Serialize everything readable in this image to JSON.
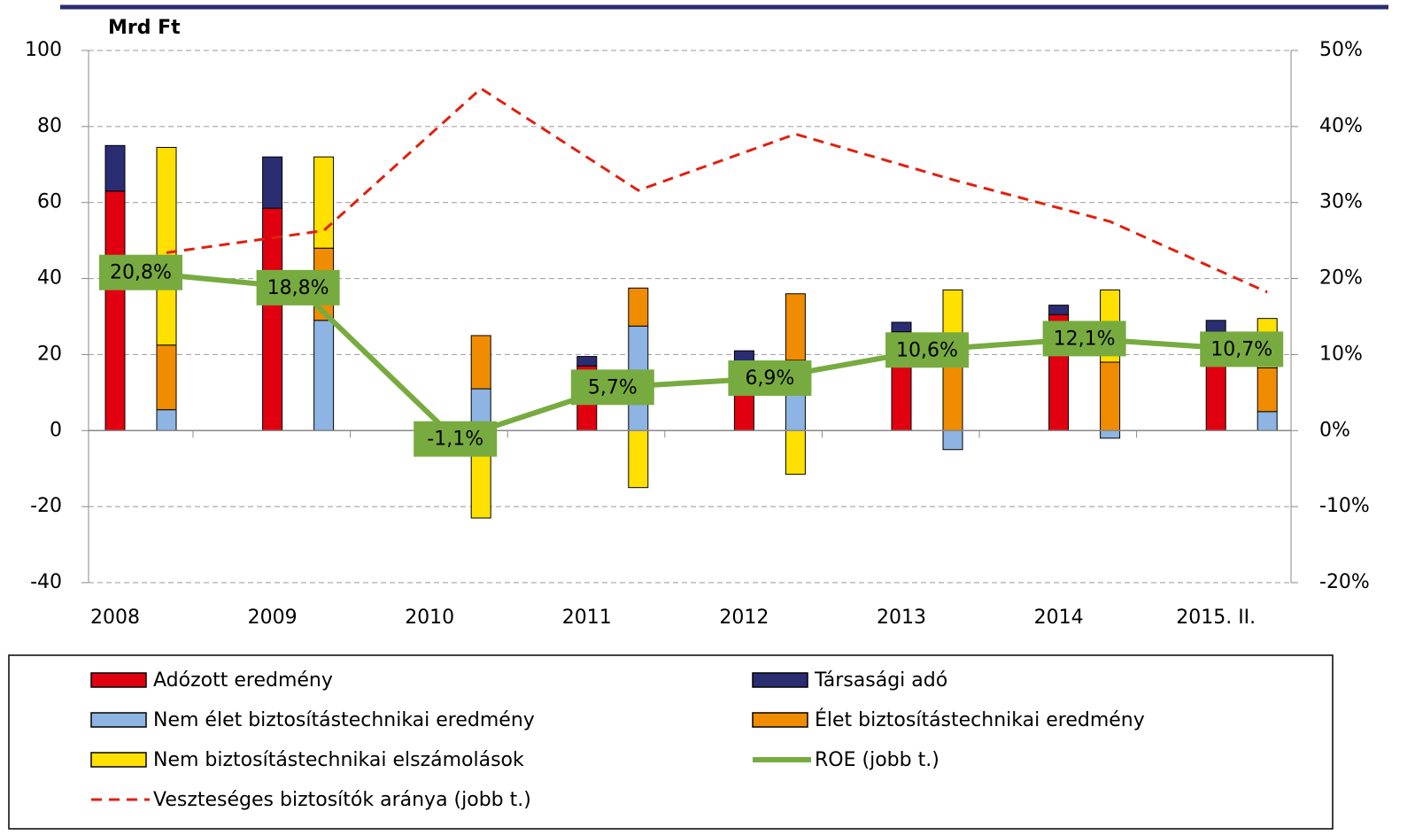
{
  "chart_data": {
    "type": "bar",
    "y_label": "Mrd Ft",
    "categories": [
      "2008",
      "2009",
      "2010",
      "2011",
      "2012",
      "2013",
      "2014",
      "2015. II."
    ],
    "ylim": [
      -40,
      100
    ],
    "yticks": [
      -40,
      -20,
      0,
      20,
      40,
      60,
      80,
      100
    ],
    "y2lim": [
      -20,
      50
    ],
    "y2ticks": [
      {
        "value": -20,
        "label": "-20%"
      },
      {
        "value": -10,
        "label": "-10%"
      },
      {
        "value": 0,
        "label": "0%"
      },
      {
        "value": 10,
        "label": "10%"
      },
      {
        "value": 20,
        "label": "20%"
      },
      {
        "value": 30,
        "label": "30%"
      },
      {
        "value": 40,
        "label": "40%"
      },
      {
        "value": 50,
        "label": "50%"
      }
    ],
    "grid": true,
    "series": [
      {
        "name": "Adózott eredmény",
        "color": "#e0000f",
        "type": "bar",
        "stack": "left",
        "values": [
          63,
          58.5,
          -1,
          17,
          18,
          26,
          30.5,
          26
        ]
      },
      {
        "name": "Társasági adó",
        "color": "#2b2d72",
        "type": "bar",
        "stack": "left",
        "values": [
          12,
          13.5,
          0,
          2.5,
          3,
          2.5,
          2.5,
          3
        ]
      },
      {
        "name": "Nem élet biztosítástechnikai eredmény",
        "color": "#8db4e2",
        "type": "bar",
        "stack": "right",
        "values": [
          5.5,
          29,
          11,
          27.5,
          18.5,
          -5,
          -2,
          5
        ]
      },
      {
        "name": "Élet biztosítástechnikai eredmény",
        "color": "#f08c00",
        "type": "bar",
        "stack": "right",
        "values": [
          17,
          19,
          14,
          10,
          17.5,
          17,
          18,
          11.5
        ]
      },
      {
        "name": "Nem biztosítástechnikai elszámolások",
        "color": "#ffe000",
        "type": "bar",
        "stack": "right",
        "values": [
          52,
          24,
          -23,
          -15,
          -11.5,
          20,
          19,
          13
        ]
      },
      {
        "name": "ROE (jobb t.)",
        "color": "#77ab3f",
        "type": "line",
        "axis": "y2",
        "values": [
          20.8,
          18.8,
          -1.1,
          5.7,
          6.9,
          10.6,
          12.1,
          10.7
        ],
        "value_labels": [
          "20,8%",
          "18,8%",
          "-1,1%",
          "5,7%",
          "6,9%",
          "10,6%",
          "12,1%",
          "10,7%"
        ]
      },
      {
        "name": "Veszteséges biztosítók aránya (jobb t.)",
        "color": "#e0200f",
        "type": "line",
        "axis": "y2",
        "dashed": true,
        "values": [
          23.4,
          26.3,
          45,
          31.6,
          39,
          33,
          27.5,
          18.2
        ]
      }
    ]
  }
}
